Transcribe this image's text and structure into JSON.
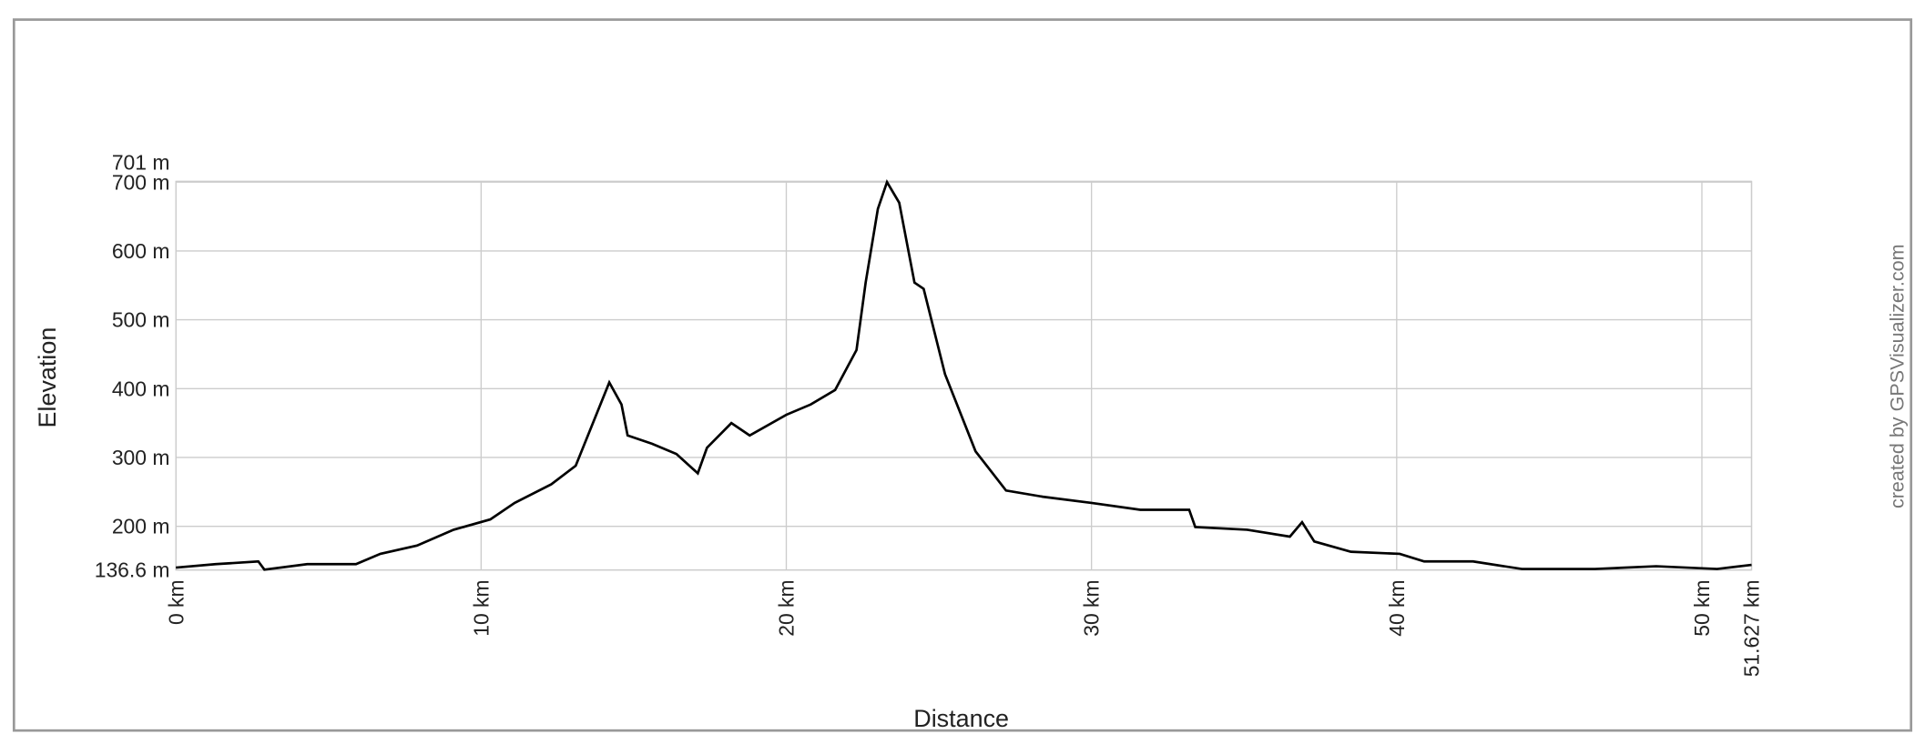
{
  "chart_data": {
    "type": "line",
    "x_label": "Distance",
    "y_label": "Elevation",
    "credit": "created by GPSVisualizer.com",
    "xlim": [
      0,
      51.627
    ],
    "ylim": [
      136.6,
      701
    ],
    "xticks": [
      {
        "value": 0,
        "label": "0 km"
      },
      {
        "value": 10,
        "label": "10 km"
      },
      {
        "value": 20,
        "label": "20 km"
      },
      {
        "value": 30,
        "label": "30 km"
      },
      {
        "value": 40,
        "label": "40 km"
      },
      {
        "value": 50,
        "label": "50 km"
      },
      {
        "value": 51.627,
        "label": "51.627 km"
      }
    ],
    "yticks": [
      {
        "value": 136.6,
        "label": "136.6 m"
      },
      {
        "value": 200,
        "label": "200 m"
      },
      {
        "value": 300,
        "label": "300 m"
      },
      {
        "value": 400,
        "label": "400 m"
      },
      {
        "value": 500,
        "label": "500 m"
      },
      {
        "value": 600,
        "label": "600 m"
      },
      {
        "value": 700,
        "label": "700 m"
      },
      {
        "value": 701,
        "label": "701 m"
      }
    ],
    "grid": true,
    "series": [
      {
        "name": "Elevation",
        "color": "#000000",
        "x": [
          0,
          1.3,
          2.7,
          2.9,
          4.3,
          5.9,
          6.7,
          7.9,
          9.1,
          10.3,
          11.1,
          12.3,
          13.1,
          13.5,
          14.2,
          14.6,
          14.8,
          15.6,
          16.4,
          17.1,
          17.4,
          18.2,
          18.8,
          20.0,
          20.8,
          21.6,
          22.3,
          22.6,
          23.0,
          23.3,
          23.7,
          24.2,
          24.5,
          25.2,
          26.2,
          27.2,
          28.4,
          30.0,
          31.6,
          33.2,
          33.4,
          35.1,
          36.5,
          36.9,
          37.3,
          38.5,
          40.1,
          40.9,
          42.5,
          44.1,
          46.5,
          48.5,
          50.5,
          51.627
        ],
        "values": [
          140,
          145,
          149,
          137,
          145,
          145,
          160,
          172,
          195,
          210,
          234,
          261,
          288,
          332,
          409,
          377,
          332,
          320,
          305,
          277,
          314,
          350,
          332,
          362,
          377,
          398,
          456,
          554,
          661,
          700,
          670,
          554,
          545,
          421,
          309,
          252,
          243,
          234,
          224,
          224,
          199,
          195,
          185,
          206,
          178,
          163,
          160,
          149,
          149,
          138,
          138,
          142,
          138,
          144
        ]
      }
    ]
  }
}
